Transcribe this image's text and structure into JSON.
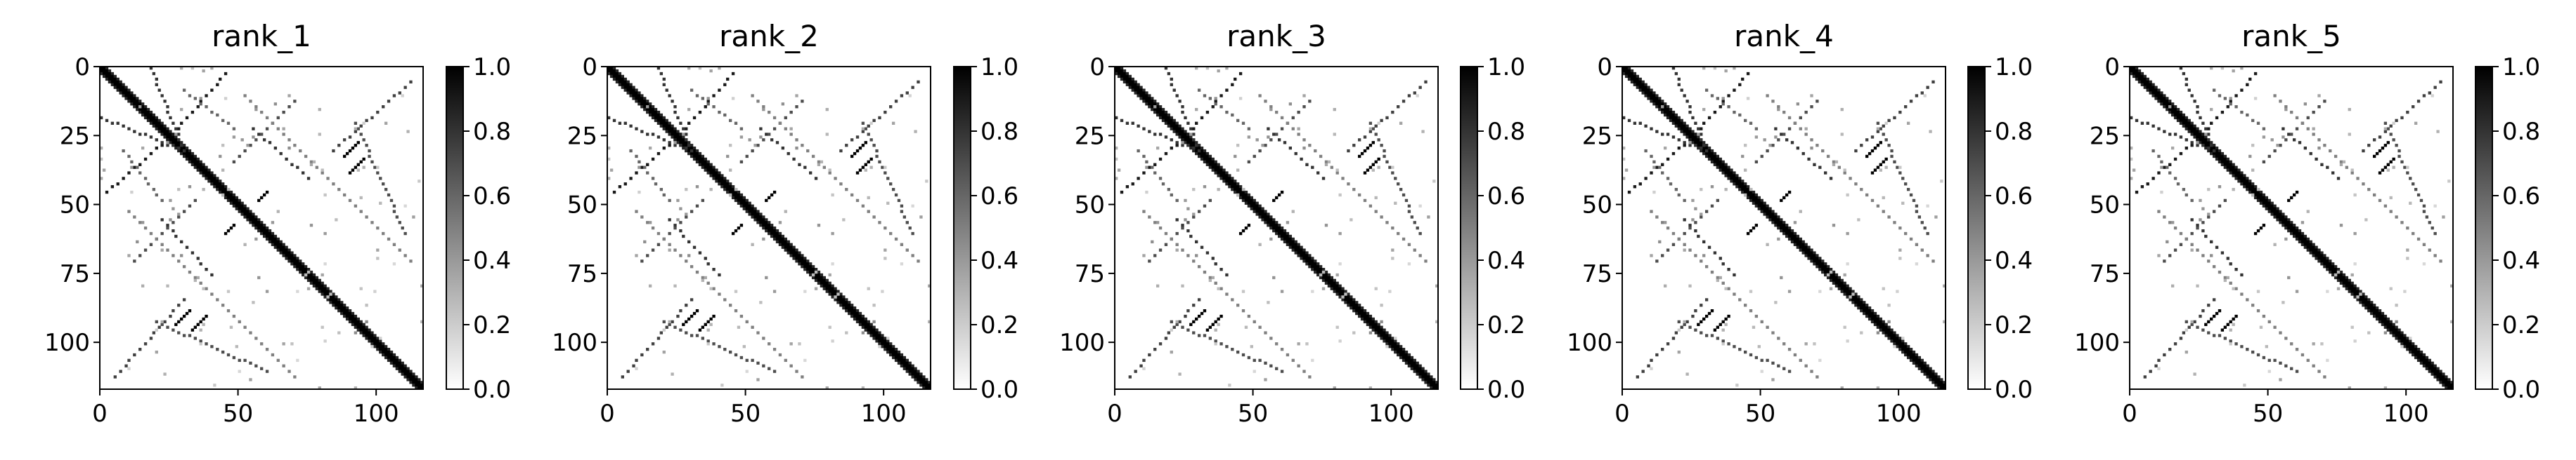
{
  "chart_data": [
    {
      "type": "heatmap",
      "title": "rank_1",
      "colormap": "Greys",
      "xlim": [
        0,
        117
      ],
      "ylim": [
        117,
        0
      ],
      "xticks": [
        "0",
        "50",
        "100"
      ],
      "yticks": [
        "0",
        "25",
        "50",
        "75",
        "100"
      ],
      "colorbar": {
        "min": 0.0,
        "max": 1.0,
        "ticks": [
          "0.0",
          "0.2",
          "0.4",
          "0.6",
          "0.8",
          "1.0"
        ]
      }
    },
    {
      "type": "heatmap",
      "title": "rank_2",
      "colormap": "Greys",
      "xlim": [
        0,
        117
      ],
      "ylim": [
        117,
        0
      ],
      "xticks": [
        "0",
        "50",
        "100"
      ],
      "yticks": [
        "0",
        "25",
        "50",
        "75",
        "100"
      ],
      "colorbar": {
        "min": 0.0,
        "max": 1.0,
        "ticks": [
          "0.0",
          "0.2",
          "0.4",
          "0.6",
          "0.8",
          "1.0"
        ]
      }
    },
    {
      "type": "heatmap",
      "title": "rank_3",
      "colormap": "Greys",
      "xlim": [
        0,
        117
      ],
      "ylim": [
        117,
        0
      ],
      "xticks": [
        "0",
        "50",
        "100"
      ],
      "yticks": [
        "0",
        "25",
        "50",
        "75",
        "100"
      ],
      "colorbar": {
        "min": 0.0,
        "max": 1.0,
        "ticks": [
          "0.0",
          "0.2",
          "0.4",
          "0.6",
          "0.8",
          "1.0"
        ]
      }
    },
    {
      "type": "heatmap",
      "title": "rank_4",
      "colormap": "Greys",
      "xlim": [
        0,
        117
      ],
      "ylim": [
        117,
        0
      ],
      "xticks": [
        "0",
        "50",
        "100"
      ],
      "yticks": [
        "0",
        "25",
        "50",
        "75",
        "100"
      ],
      "colorbar": {
        "min": 0.0,
        "max": 1.0,
        "ticks": [
          "0.0",
          "0.2",
          "0.4",
          "0.6",
          "0.8",
          "1.0"
        ]
      }
    },
    {
      "type": "heatmap",
      "title": "rank_5",
      "colormap": "Greys",
      "xlim": [
        0,
        117
      ],
      "ylim": [
        117,
        0
      ],
      "xticks": [
        "0",
        "50",
        "100"
      ],
      "yticks": [
        "0",
        "25",
        "50",
        "75",
        "100"
      ],
      "colorbar": {
        "min": 0.0,
        "max": 1.0,
        "ticks": [
          "0.0",
          "0.2",
          "0.4",
          "0.6",
          "0.8",
          "1.0"
        ]
      }
    }
  ]
}
